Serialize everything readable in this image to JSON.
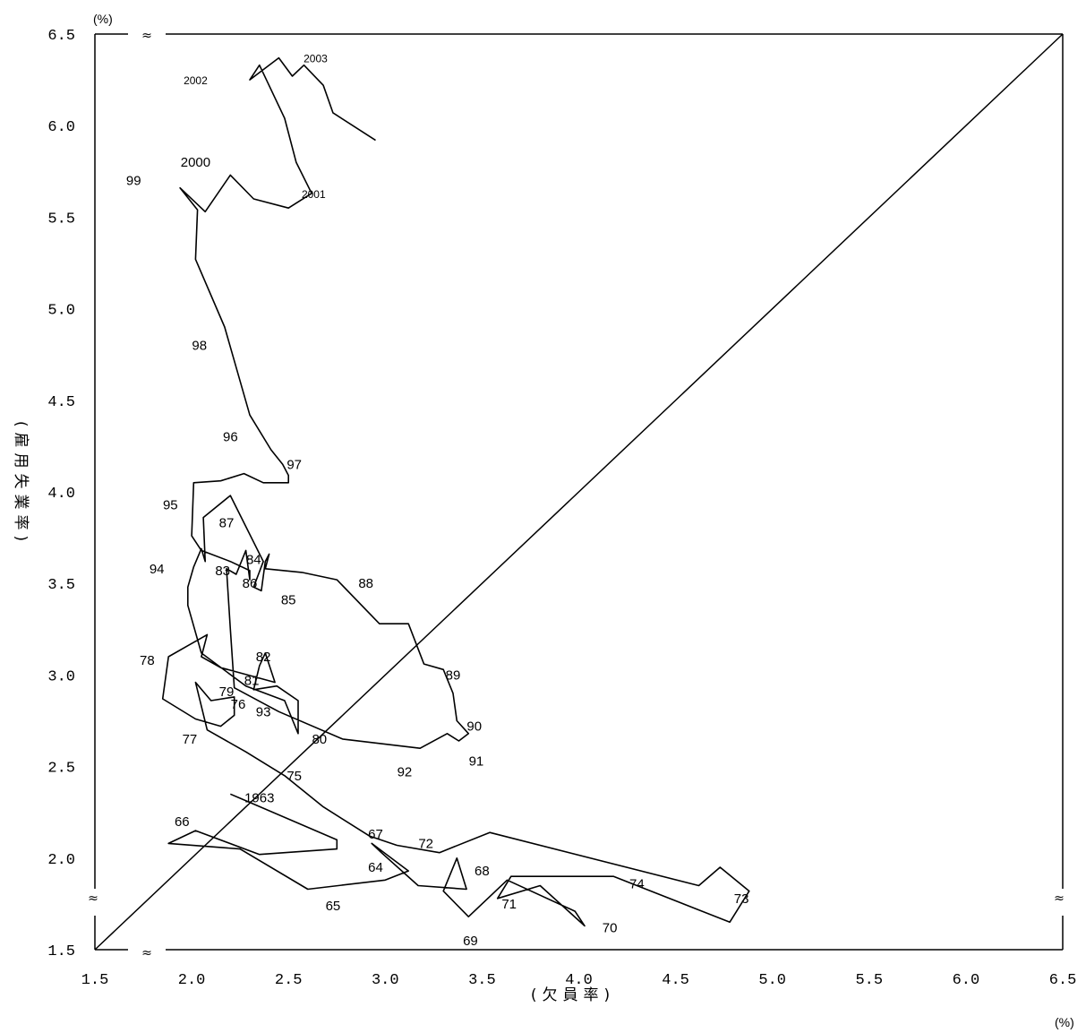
{
  "chart_data": {
    "type": "line",
    "title": "",
    "xlabel": "(欠員率)",
    "ylabel": "(雇用失業率)",
    "x_unit": "(%)",
    "y_unit": "(%)",
    "xlim": [
      1.5,
      6.5
    ],
    "ylim": [
      1.5,
      6.5
    ],
    "x_ticks": [
      "1.5",
      "2.0",
      "2.5",
      "3.0",
      "3.5",
      "4.0",
      "4.5",
      "5.0",
      "5.5",
      "6.0",
      "6.5"
    ],
    "y_ticks": [
      "6.5",
      "6.0",
      "5.5",
      "5.0",
      "4.5",
      "4.0",
      "3.5",
      "3.0",
      "2.5",
      "2.0",
      "1.5"
    ],
    "axis_break_mark": "≈",
    "grid": false,
    "legend": "none",
    "reference_line": {
      "from": [
        1.5,
        1.5
      ],
      "to": [
        6.5,
        6.5
      ]
    },
    "series": [
      {
        "points": [
          [
            2.2,
            2.35
          ],
          [
            2.75,
            2.1
          ],
          [
            2.75,
            2.05
          ],
          [
            2.35,
            2.02
          ],
          [
            2.02,
            2.15
          ],
          [
            1.88,
            2.08
          ],
          [
            2.25,
            2.05
          ],
          [
            2.6,
            1.83
          ],
          [
            3.0,
            1.88
          ],
          [
            3.12,
            1.93
          ],
          [
            2.93,
            2.08
          ],
          [
            2.98,
            2.03
          ],
          [
            3.17,
            1.85
          ],
          [
            3.42,
            1.83
          ],
          [
            3.37,
            2.0
          ],
          [
            3.3,
            1.82
          ],
          [
            3.43,
            1.68
          ],
          [
            3.63,
            1.88
          ],
          [
            3.98,
            1.71
          ],
          [
            4.03,
            1.63
          ],
          [
            3.8,
            1.85
          ],
          [
            3.58,
            1.78
          ],
          [
            3.65,
            1.9
          ],
          [
            4.18,
            1.9
          ],
          [
            4.78,
            1.65
          ],
          [
            4.88,
            1.82
          ],
          [
            4.73,
            1.95
          ],
          [
            4.62,
            1.85
          ],
          [
            3.54,
            2.14
          ],
          [
            3.28,
            2.03
          ],
          [
            3.06,
            2.07
          ],
          [
            2.92,
            2.12
          ],
          [
            2.68,
            2.28
          ],
          [
            2.48,
            2.45
          ],
          [
            2.28,
            2.58
          ],
          [
            2.08,
            2.7
          ],
          [
            2.02,
            2.96
          ],
          [
            2.1,
            2.86
          ],
          [
            2.22,
            2.88
          ],
          [
            2.22,
            2.78
          ],
          [
            2.15,
            2.72
          ],
          [
            2.02,
            2.76
          ],
          [
            1.85,
            2.87
          ],
          [
            1.88,
            3.1
          ],
          [
            1.98,
            3.16
          ],
          [
            2.08,
            3.22
          ],
          [
            2.05,
            3.1
          ],
          [
            2.15,
            3.04
          ],
          [
            2.43,
            2.96
          ],
          [
            2.38,
            3.12
          ],
          [
            2.35,
            3.05
          ],
          [
            2.32,
            2.92
          ],
          [
            2.44,
            2.94
          ],
          [
            2.55,
            2.86
          ],
          [
            2.55,
            2.68
          ],
          [
            2.48,
            2.86
          ],
          [
            2.28,
            2.94
          ],
          [
            2.05,
            3.12
          ],
          [
            1.98,
            3.38
          ],
          [
            1.98,
            3.48
          ],
          [
            2.01,
            3.59
          ],
          [
            2.05,
            3.69
          ],
          [
            2.07,
            3.62
          ],
          [
            2.06,
            3.86
          ],
          [
            2.2,
            3.98
          ],
          [
            2.37,
            3.62
          ],
          [
            2.32,
            3.48
          ],
          [
            2.36,
            3.46
          ],
          [
            2.38,
            3.62
          ],
          [
            2.4,
            3.66
          ],
          [
            2.38,
            3.58
          ],
          [
            2.57,
            3.56
          ],
          [
            2.75,
            3.52
          ],
          [
            2.97,
            3.28
          ],
          [
            3.12,
            3.28
          ],
          [
            3.2,
            3.06
          ],
          [
            3.3,
            3.03
          ],
          [
            3.35,
            2.9
          ],
          [
            3.37,
            2.75
          ],
          [
            3.43,
            2.68
          ],
          [
            3.38,
            2.64
          ],
          [
            3.32,
            2.68
          ],
          [
            3.18,
            2.6
          ],
          [
            2.78,
            2.65
          ],
          [
            2.45,
            2.8
          ],
          [
            2.22,
            2.93
          ],
          [
            2.2,
            3.25
          ],
          [
            2.18,
            3.58
          ],
          [
            2.23,
            3.55
          ],
          [
            2.28,
            3.68
          ],
          [
            2.3,
            3.52
          ],
          [
            2.3,
            3.57
          ],
          [
            2.2,
            3.62
          ],
          [
            2.05,
            3.68
          ],
          [
            2.0,
            3.76
          ],
          [
            2.01,
            4.05
          ],
          [
            2.15,
            4.06
          ],
          [
            2.27,
            4.1
          ],
          [
            2.37,
            4.05
          ],
          [
            2.5,
            4.05
          ],
          [
            2.5,
            4.09
          ],
          [
            2.47,
            4.15
          ],
          [
            2.41,
            4.23
          ],
          [
            2.3,
            4.42
          ],
          [
            2.17,
            4.9
          ],
          [
            2.02,
            5.27
          ],
          [
            2.03,
            5.54
          ],
          [
            1.94,
            5.66
          ],
          [
            2.07,
            5.53
          ],
          [
            2.2,
            5.73
          ],
          [
            2.32,
            5.6
          ],
          [
            2.5,
            5.55
          ],
          [
            2.62,
            5.63
          ],
          [
            2.54,
            5.8
          ],
          [
            2.48,
            6.04
          ],
          [
            2.35,
            6.33
          ],
          [
            2.3,
            6.25
          ],
          [
            2.45,
            6.37
          ],
          [
            2.52,
            6.27
          ],
          [
            2.58,
            6.33
          ],
          [
            2.68,
            6.22
          ],
          [
            2.73,
            6.07
          ],
          [
            2.95,
            5.92
          ]
        ]
      }
    ],
    "annotations": [
      {
        "text": "1963",
        "x": 2.35,
        "y": 2.33
      },
      {
        "text": "64",
        "x": 2.95,
        "y": 1.95
      },
      {
        "text": "65",
        "x": 2.73,
        "y": 1.74
      },
      {
        "text": "66",
        "x": 1.95,
        "y": 2.2
      },
      {
        "text": "67",
        "x": 2.95,
        "y": 2.13
      },
      {
        "text": "68",
        "x": 3.5,
        "y": 1.93
      },
      {
        "text": "69",
        "x": 3.44,
        "y": 1.55
      },
      {
        "text": "70",
        "x": 4.16,
        "y": 1.62
      },
      {
        "text": "71",
        "x": 3.64,
        "y": 1.75
      },
      {
        "text": "72",
        "x": 3.21,
        "y": 2.08
      },
      {
        "text": "73",
        "x": 4.84,
        "y": 1.78
      },
      {
        "text": "74",
        "x": 4.3,
        "y": 1.86
      },
      {
        "text": "75",
        "x": 2.53,
        "y": 2.45
      },
      {
        "text": "76",
        "x": 2.24,
        "y": 2.84
      },
      {
        "text": "77",
        "x": 1.99,
        "y": 2.65
      },
      {
        "text": "78",
        "x": 1.77,
        "y": 3.08
      },
      {
        "text": "79",
        "x": 2.18,
        "y": 2.91
      },
      {
        "text": "80",
        "x": 2.66,
        "y": 2.65
      },
      {
        "text": "81",
        "x": 2.31,
        "y": 2.97
      },
      {
        "text": "82",
        "x": 2.37,
        "y": 3.1
      },
      {
        "text": "83",
        "x": 2.16,
        "y": 3.57
      },
      {
        "text": "84",
        "x": 2.32,
        "y": 3.63
      },
      {
        "text": "85",
        "x": 2.5,
        "y": 3.41
      },
      {
        "text": "86",
        "x": 2.3,
        "y": 3.5
      },
      {
        "text": "87",
        "x": 2.18,
        "y": 3.83
      },
      {
        "text": "88",
        "x": 2.9,
        "y": 3.5
      },
      {
        "text": "89",
        "x": 3.35,
        "y": 3.0
      },
      {
        "text": "90",
        "x": 3.46,
        "y": 2.72
      },
      {
        "text": "91",
        "x": 3.47,
        "y": 2.53
      },
      {
        "text": "92",
        "x": 3.1,
        "y": 2.47
      },
      {
        "text": "93",
        "x": 2.37,
        "y": 2.8
      },
      {
        "text": "94",
        "x": 1.82,
        "y": 3.58
      },
      {
        "text": "95",
        "x": 1.89,
        "y": 3.93
      },
      {
        "text": "96",
        "x": 2.2,
        "y": 4.3
      },
      {
        "text": "97",
        "x": 2.53,
        "y": 4.15
      },
      {
        "text": "98",
        "x": 2.04,
        "y": 4.8
      },
      {
        "text": "99",
        "x": 1.7,
        "y": 5.7
      },
      {
        "text": "2000",
        "x": 2.02,
        "y": 5.8
      },
      {
        "text": "2001",
        "x": 2.63,
        "y": 5.63,
        "small": true
      },
      {
        "text": "2002",
        "x": 2.02,
        "y": 6.25,
        "small": true
      },
      {
        "text": "2003",
        "x": 2.64,
        "y": 6.37,
        "small": true
      }
    ]
  }
}
